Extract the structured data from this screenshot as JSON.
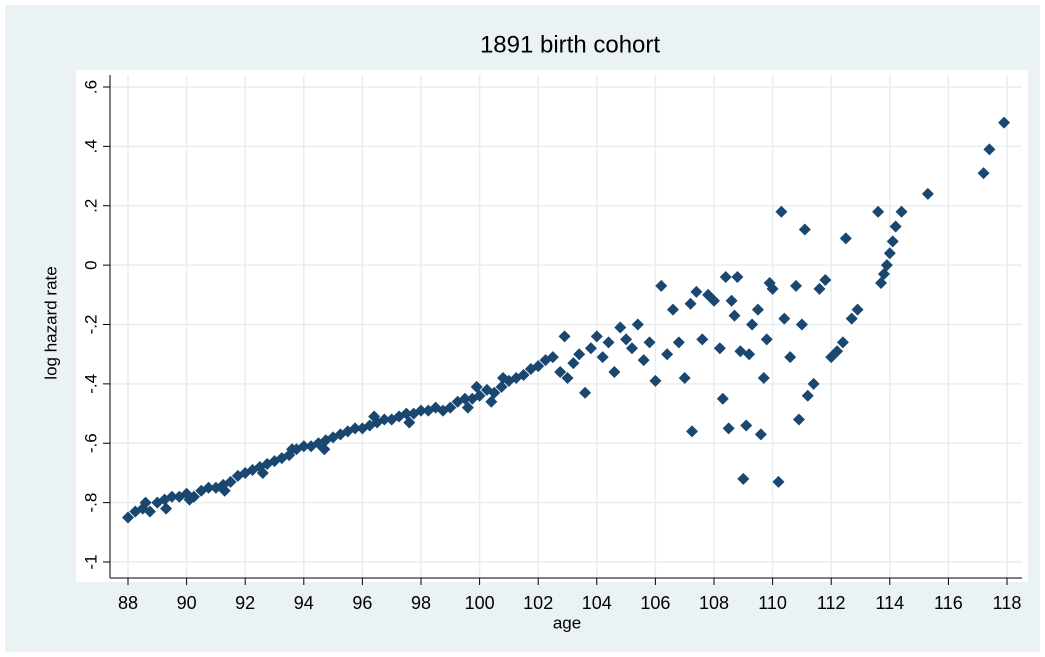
{
  "chart_data": {
    "type": "scatter",
    "title": "1891 birth cohort",
    "xlabel": "age",
    "ylabel": "log hazard rate",
    "color": "#1a476f",
    "grid": true,
    "xlim": [
      88,
      118
    ],
    "xticks": [
      88,
      90,
      92,
      94,
      96,
      98,
      100,
      102,
      104,
      106,
      108,
      110,
      112,
      114,
      116,
      118
    ],
    "ylim": [
      -1,
      0.6
    ],
    "yticks": [
      {
        "value": -1,
        "label": "-1"
      },
      {
        "value": -0.8,
        "label": "-.8"
      },
      {
        "value": -0.6,
        "label": "-.6"
      },
      {
        "value": -0.4,
        "label": "-.4"
      },
      {
        "value": -0.2,
        "label": "-.2"
      },
      0,
      {
        "value": 0.2,
        "label": ".2"
      },
      {
        "value": 0.4,
        "label": ".4"
      },
      {
        "value": 0.6,
        "label": ".6"
      }
    ],
    "x": [
      88.0,
      88.25,
      88.5,
      88.75,
      89.0,
      89.25,
      89.5,
      89.75,
      90.0,
      90.25,
      90.5,
      90.75,
      91.0,
      91.25,
      91.5,
      91.75,
      92.0,
      92.25,
      92.5,
      92.75,
      93.0,
      93.25,
      93.5,
      93.75,
      94.0,
      94.25,
      94.5,
      94.75,
      95.0,
      95.25,
      95.5,
      95.75,
      96.0,
      96.25,
      96.5,
      96.75,
      97.0,
      97.25,
      97.5,
      97.75,
      98.0,
      98.25,
      98.5,
      98.75,
      99.0,
      99.25,
      99.5,
      99.75,
      100.0,
      100.25,
      100.5,
      100.75,
      101.0,
      88.6,
      89.3,
      90.1,
      91.3,
      92.6,
      93.6,
      94.7,
      96.4,
      97.6,
      99.6,
      100.4,
      100.8,
      99.9,
      101.25,
      101.5,
      101.75,
      102.0,
      102.25,
      102.5,
      102.75,
      102.9,
      103.0,
      103.2,
      103.4,
      103.6,
      103.8,
      104.0,
      104.2,
      104.4,
      104.6,
      104.8,
      105.0,
      105.2,
      105.4,
      105.6,
      105.8,
      106.0,
      106.2,
      106.4,
      106.6,
      106.8,
      107.0,
      107.2,
      107.25,
      107.4,
      107.6,
      107.8,
      108.0,
      108.2,
      108.3,
      108.4,
      108.5,
      108.6,
      108.7,
      108.8,
      108.9,
      109.0,
      109.1,
      109.2,
      109.3,
      109.5,
      109.6,
      109.7,
      109.8,
      109.9,
      110.0,
      110.2,
      110.3,
      110.4,
      110.6,
      110.8,
      110.9,
      111.0,
      111.1,
      111.2,
      111.4,
      111.6,
      111.8,
      112.0,
      112.2,
      112.4,
      112.5,
      112.7,
      112.9,
      113.6,
      113.7,
      113.8,
      113.9,
      114.0,
      114.1,
      114.2,
      114.4,
      115.3,
      117.2,
      117.4,
      117.9
    ],
    "values": [
      -0.85,
      -0.83,
      -0.82,
      -0.83,
      -0.8,
      -0.79,
      -0.78,
      -0.78,
      -0.77,
      -0.78,
      -0.76,
      -0.75,
      -0.75,
      -0.74,
      -0.73,
      -0.71,
      -0.7,
      -0.69,
      -0.68,
      -0.67,
      -0.66,
      -0.65,
      -0.64,
      -0.62,
      -0.61,
      -0.61,
      -0.6,
      -0.59,
      -0.58,
      -0.57,
      -0.56,
      -0.55,
      -0.55,
      -0.54,
      -0.53,
      -0.52,
      -0.52,
      -0.51,
      -0.5,
      -0.5,
      -0.49,
      -0.49,
      -0.48,
      -0.49,
      -0.48,
      -0.46,
      -0.45,
      -0.45,
      -0.44,
      -0.42,
      -0.43,
      -0.41,
      -0.39,
      -0.8,
      -0.82,
      -0.79,
      -0.76,
      -0.7,
      -0.62,
      -0.62,
      -0.51,
      -0.53,
      -0.48,
      -0.46,
      -0.38,
      -0.41,
      -0.38,
      -0.37,
      -0.35,
      -0.34,
      -0.32,
      -0.31,
      -0.36,
      -0.24,
      -0.38,
      -0.33,
      -0.3,
      -0.43,
      -0.28,
      -0.24,
      -0.31,
      -0.26,
      -0.36,
      -0.21,
      -0.25,
      -0.28,
      -0.2,
      -0.32,
      -0.26,
      -0.39,
      -0.07,
      -0.3,
      -0.15,
      -0.26,
      -0.38,
      -0.13,
      -0.56,
      -0.09,
      -0.25,
      -0.1,
      -0.12,
      -0.28,
      -0.45,
      -0.04,
      -0.55,
      -0.12,
      -0.17,
      -0.04,
      -0.29,
      -0.72,
      -0.54,
      -0.3,
      -0.2,
      -0.15,
      -0.57,
      -0.38,
      -0.25,
      -0.06,
      -0.08,
      -0.73,
      0.18,
      -0.18,
      -0.31,
      -0.07,
      -0.52,
      -0.2,
      0.12,
      -0.44,
      -0.4,
      -0.08,
      -0.05,
      -0.31,
      -0.29,
      -0.26,
      0.09,
      -0.18,
      -0.15,
      0.18,
      -0.06,
      -0.03,
      0.0,
      0.04,
      0.08,
      0.13,
      0.18,
      0.24,
      0.31,
      0.39,
      0.48
    ]
  }
}
